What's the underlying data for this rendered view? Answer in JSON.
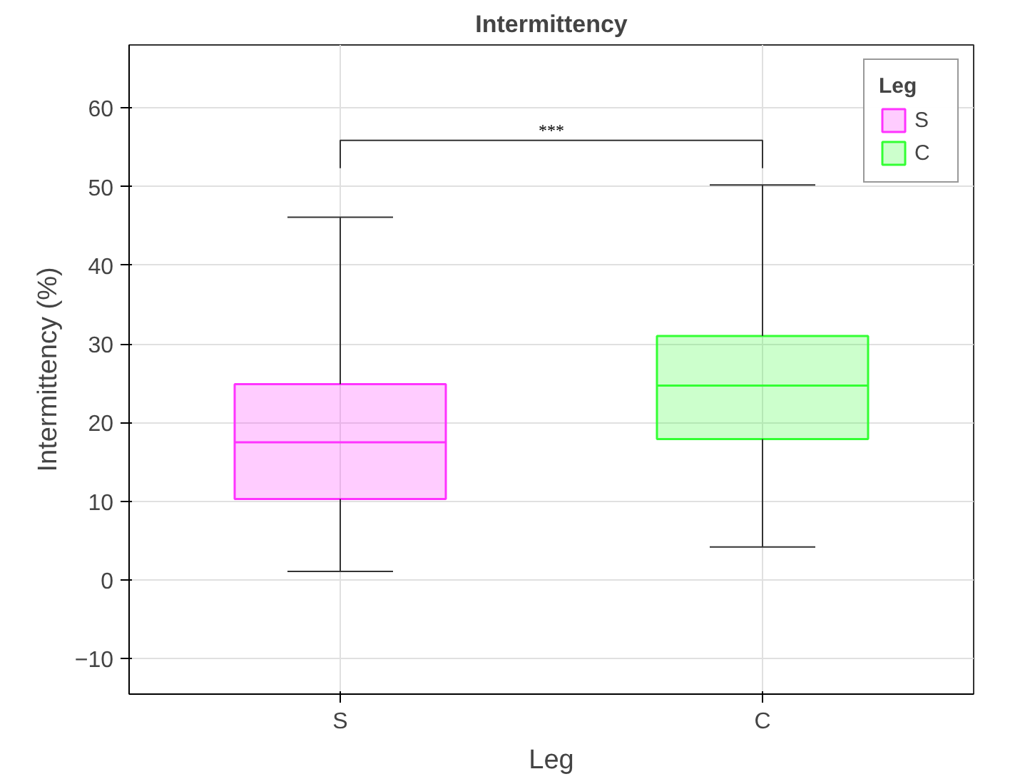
{
  "chart_data": {
    "type": "box",
    "title": "Intermittency",
    "xlabel": "Leg",
    "ylabel": "Intermittency (%)",
    "legend_title": "Leg",
    "categories": [
      "S",
      "C"
    ],
    "series": [
      {
        "name": "S",
        "color": "#ff33ff",
        "boxes": [
          {
            "low": 1.1,
            "q1": 10.3,
            "median": 17.5,
            "q3": 24.9,
            "high": 46.1
          },
          null
        ]
      },
      {
        "name": "C",
        "color": "#33ff33",
        "boxes": [
          null,
          {
            "low": 4.2,
            "q1": 17.9,
            "median": 24.7,
            "q3": 31.0,
            "high": 50.2
          }
        ]
      }
    ],
    "ylim": [
      -14.5,
      68
    ],
    "yticks": [
      -10,
      0,
      10,
      20,
      30,
      40,
      50,
      60
    ],
    "grid": true,
    "legend": "top right",
    "annotations": [
      "***"
    ]
  }
}
